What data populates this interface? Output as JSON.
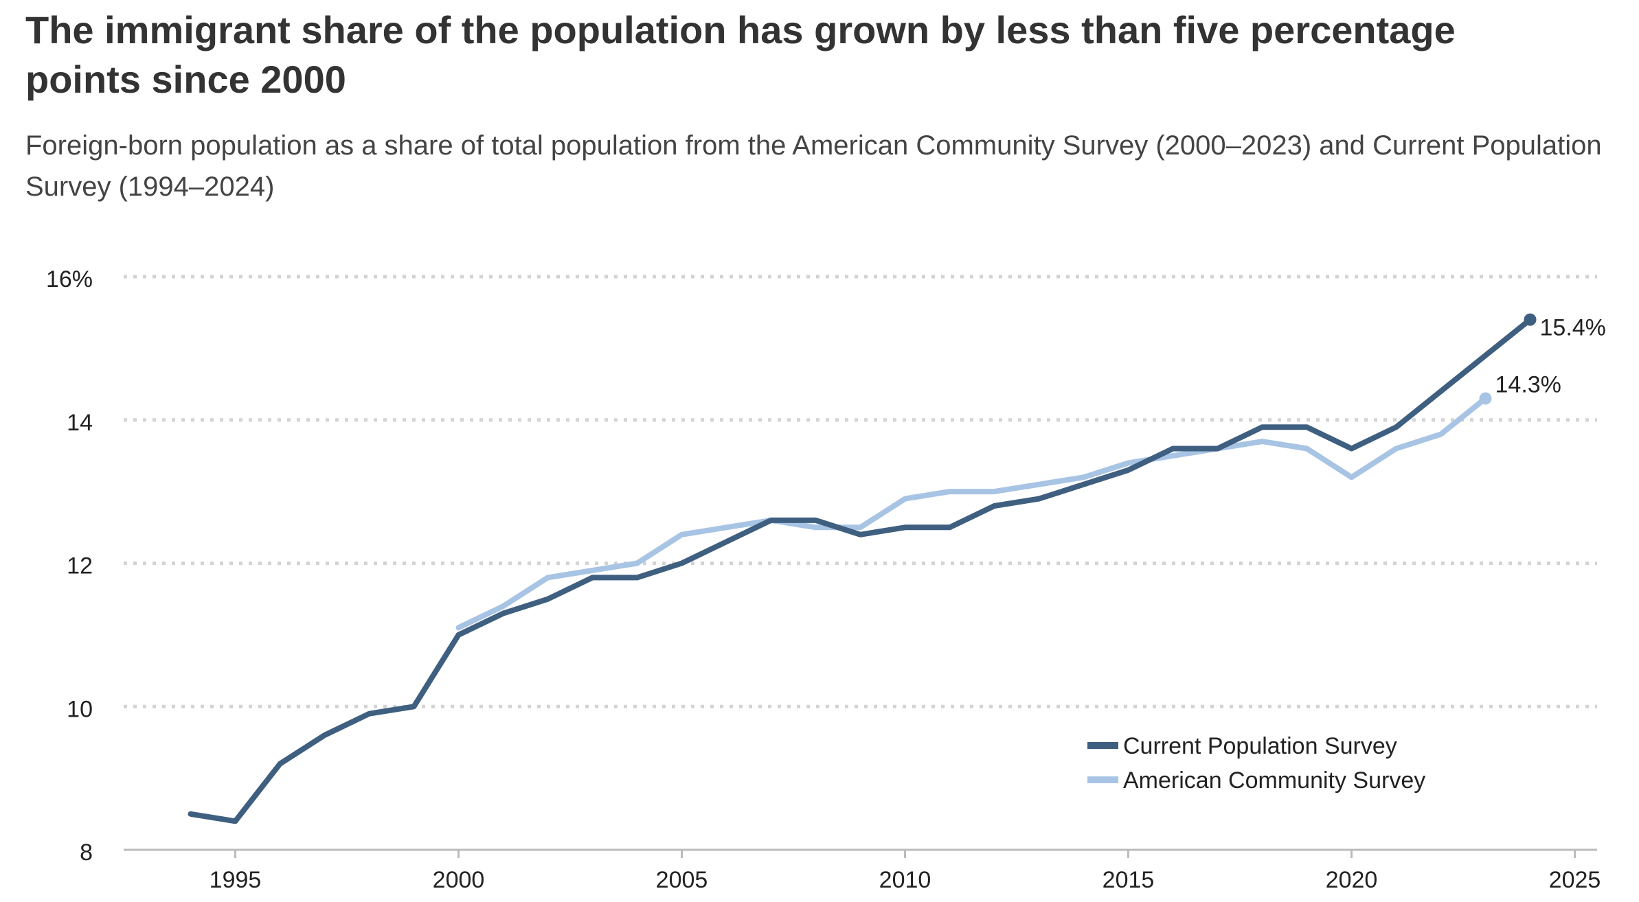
{
  "chart_data": {
    "type": "line",
    "title": "The immigrant share of the population has grown by less than five percentage points since 2000",
    "subtitle": "Foreign-born population as a share of total population from the American Community Survey (2000–2023) and Current Population Survey (1994–2024)",
    "xlim": [
      1992.5,
      2025.5
    ],
    "ylim": [
      8,
      16
    ],
    "x_ticks": [
      1995,
      2000,
      2005,
      2010,
      2015,
      2020,
      2025
    ],
    "x_tick_labels": [
      "1995",
      "2000",
      "2005",
      "2010",
      "2015",
      "2020",
      "2025"
    ],
    "y_ticks": [
      8,
      10,
      12,
      14,
      16
    ],
    "y_tick_labels": [
      "8",
      "10",
      "12",
      "14",
      "16%"
    ],
    "grid": "horizontal dotted",
    "legend_position": "bottom-right",
    "series": [
      {
        "name": "Current Population Survey",
        "color": "#3f5f80",
        "x": [
          1994,
          1995,
          1996,
          1997,
          1998,
          1999,
          2000,
          2001,
          2002,
          2003,
          2004,
          2005,
          2006,
          2007,
          2008,
          2009,
          2010,
          2011,
          2012,
          2013,
          2014,
          2015,
          2016,
          2017,
          2018,
          2019,
          2020,
          2021,
          2022,
          2023,
          2024
        ],
        "values": [
          8.5,
          8.4,
          9.2,
          9.6,
          9.9,
          10.0,
          11.0,
          11.3,
          11.5,
          11.8,
          11.8,
          12.0,
          12.3,
          12.6,
          12.6,
          12.4,
          12.5,
          12.5,
          12.8,
          12.9,
          13.1,
          13.3,
          13.6,
          13.6,
          13.9,
          13.9,
          13.6,
          13.9,
          14.4,
          14.9,
          15.4
        ],
        "end_label": "15.4%"
      },
      {
        "name": "American Community Survey",
        "color": "#a8c4e4",
        "x": [
          2000,
          2001,
          2002,
          2003,
          2004,
          2005,
          2006,
          2007,
          2008,
          2009,
          2010,
          2011,
          2012,
          2013,
          2014,
          2015,
          2016,
          2017,
          2018,
          2019,
          2020,
          2021,
          2022,
          2023
        ],
        "values": [
          11.1,
          11.4,
          11.8,
          11.9,
          12.0,
          12.4,
          12.5,
          12.6,
          12.5,
          12.5,
          12.9,
          13.0,
          13.0,
          13.1,
          13.2,
          13.4,
          13.5,
          13.6,
          13.7,
          13.6,
          13.2,
          13.6,
          13.8,
          14.3
        ],
        "end_label": "14.3%"
      }
    ],
    "colors": {
      "grid": "#d3d3d3",
      "axis": "#bbbbbb",
      "text": "#222222"
    }
  }
}
